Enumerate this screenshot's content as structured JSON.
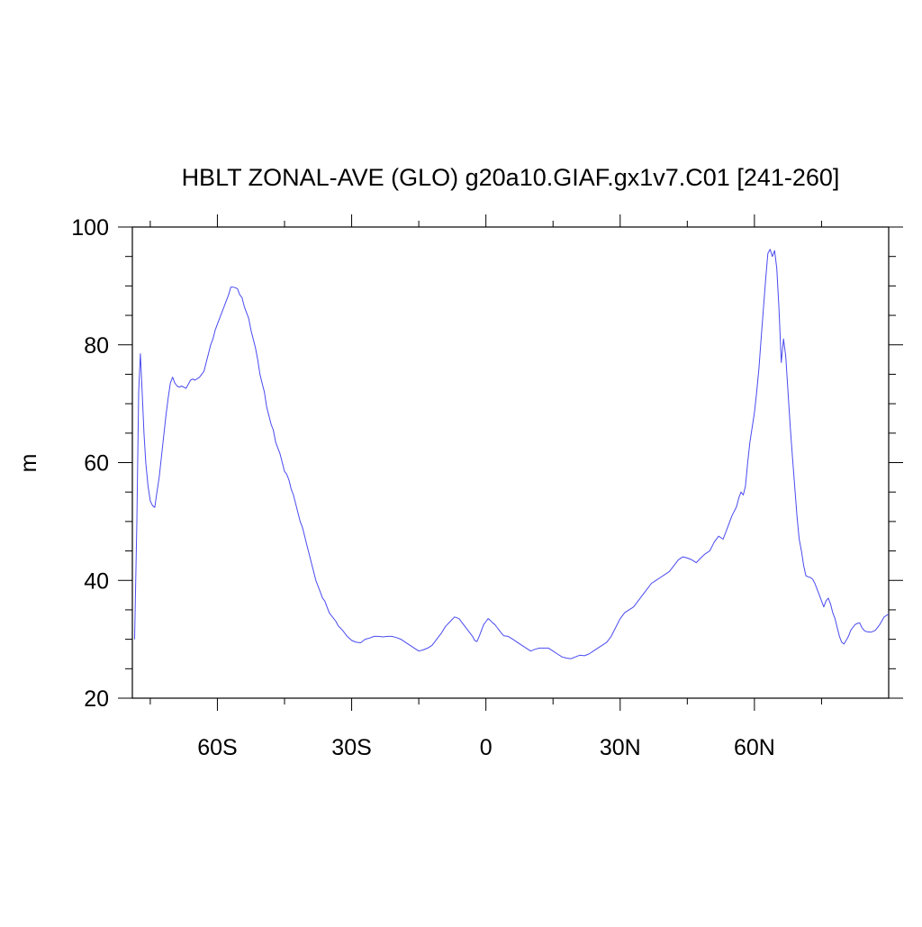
{
  "chart_data": {
    "type": "line",
    "title": "HBLT ZONAL-AVE (GLO) g20a10.GIAF.gx1v7.C01 [241-260]",
    "xlabel": "",
    "ylabel": "m",
    "xlim": [
      -79,
      90
    ],
    "ylim": [
      20,
      100
    ],
    "grid": false,
    "legend": "none",
    "x_ticks": [
      {
        "value": -60,
        "label": "60S"
      },
      {
        "value": -30,
        "label": "30S"
      },
      {
        "value": 0,
        "label": "0"
      },
      {
        "value": 30,
        "label": "30N"
      },
      {
        "value": 60,
        "label": "60N"
      }
    ],
    "y_ticks": [
      {
        "value": 20,
        "label": "20"
      },
      {
        "value": 40,
        "label": "40"
      },
      {
        "value": 60,
        "label": "60"
      },
      {
        "value": 80,
        "label": "80"
      },
      {
        "value": 100,
        "label": "100"
      }
    ],
    "line_color": "#4a4af0",
    "series": [
      {
        "x": [
          -78.5,
          -78.0,
          -77.6,
          -77.2,
          -76.8,
          -76.4,
          -76.0,
          -75.5,
          -75.0,
          -74.5,
          -74.0,
          -73.5,
          -73.0,
          -72.5,
          -72.0,
          -71.5,
          -71.0,
          -70.5,
          -70.0,
          -69.5,
          -69.0,
          -68.5,
          -68.0,
          -67.0,
          -66.0,
          -65.5,
          -65.0,
          -64.0,
          -63.5,
          -63.0,
          -62.5,
          -62.0,
          -61.5,
          -61.0,
          -60.5,
          -60.0,
          -59.5,
          -59.0,
          -58.5,
          -58.0,
          -57.5,
          -57.0,
          -56.5,
          -56.0,
          -55.5,
          -55.0,
          -54.5,
          -54.0,
          -53.5,
          -53.0,
          -52.5,
          -52.0,
          -51.5,
          -51.0,
          -50.5,
          -50.0,
          -49.5,
          -49.0,
          -48.5,
          -48.0,
          -47.5,
          -47.0,
          -46.5,
          -46.0,
          -45.5,
          -45.0,
          -44.5,
          -44.0,
          -43.5,
          -43.0,
          -42.5,
          -42.0,
          -41.5,
          -41.0,
          -40.5,
          -40.0,
          -39.5,
          -39.0,
          -38.5,
          -38.0,
          -37.5,
          -37.0,
          -36.5,
          -36.0,
          -35.5,
          -35.0,
          -34.5,
          -34.0,
          -33.5,
          -33.0,
          -32.0,
          -31.0,
          -30.0,
          -29.0,
          -28.0,
          -27.0,
          -26.0,
          -25.0,
          -24.0,
          -23.0,
          -22.0,
          -21.0,
          -20.0,
          -19.0,
          -18.0,
          -17.0,
          -16.0,
          -15.0,
          -14.0,
          -13.0,
          -12.0,
          -11.0,
          -10.0,
          -9.0,
          -8.0,
          -7.0,
          -6.0,
          -5.0,
          -4.0,
          -3.0,
          -2.5,
          -2.0,
          -1.5,
          -1.0,
          -0.5,
          0.0,
          0.5,
          1.0,
          1.5,
          2.0,
          2.5,
          3.0,
          3.5,
          4.0,
          5.0,
          6.0,
          7.0,
          8.0,
          9.0,
          10.0,
          11.0,
          12.0,
          13.0,
          14.0,
          15.0,
          16.0,
          17.0,
          18.0,
          19.0,
          20.0,
          21.0,
          22.0,
          23.0,
          24.0,
          25.0,
          26.0,
          27.0,
          28.0,
          29.0,
          30.0,
          31.0,
          32.0,
          33.0,
          34.0,
          35.0,
          36.0,
          37.0,
          38.0,
          39.0,
          40.0,
          41.0,
          42.0,
          43.0,
          44.0,
          45.0,
          46.0,
          47.0,
          48.0,
          49.0,
          50.0,
          51.0,
          52.0,
          53.0,
          54.0,
          55.0,
          56.0,
          56.5,
          57.0,
          57.5,
          58.0,
          58.5,
          59.0,
          59.5,
          60.0,
          60.5,
          61.0,
          61.5,
          62.0,
          62.5,
          63.0,
          63.5,
          64.0,
          64.5,
          65.0,
          65.5,
          66.0,
          66.5,
          67.0,
          67.5,
          68.0,
          68.5,
          69.0,
          69.5,
          70.0,
          70.5,
          71.0,
          71.5,
          72.0,
          72.5,
          73.0,
          73.5,
          74.0,
          74.5,
          75.0,
          75.5,
          76.0,
          76.5,
          77.0,
          77.5,
          78.0,
          78.5,
          79.0,
          79.5,
          80.0,
          80.5,
          81.0,
          81.5,
          82.0,
          82.5,
          83.0,
          83.5,
          84.0,
          84.5,
          85.0,
          86.0,
          87.0,
          88.0,
          89.0,
          90.0
        ],
        "values": [
          30.0,
          50.0,
          72.0,
          78.5,
          72.0,
          65.0,
          60.0,
          56.0,
          53.5,
          52.7,
          52.4,
          55.0,
          57.5,
          61.0,
          64.5,
          68.0,
          71.0,
          73.5,
          74.5,
          73.5,
          73.0,
          72.8,
          73.0,
          72.6,
          74.0,
          74.2,
          74.0,
          74.5,
          75.0,
          75.5,
          77.0,
          78.5,
          80.0,
          81.0,
          82.5,
          83.5,
          84.5,
          85.5,
          86.5,
          87.5,
          88.5,
          89.8,
          89.8,
          89.7,
          89.5,
          88.5,
          88.0,
          86.5,
          85.5,
          84.5,
          82.5,
          81.0,
          79.5,
          77.5,
          75.0,
          73.5,
          72.0,
          69.5,
          68.0,
          66.5,
          65.5,
          63.5,
          62.5,
          61.5,
          60.0,
          58.5,
          58.0,
          57.0,
          55.5,
          54.5,
          53.0,
          51.5,
          50.0,
          49.0,
          47.5,
          46.0,
          44.5,
          43.0,
          41.5,
          40.0,
          39.0,
          38.0,
          37.0,
          36.5,
          35.5,
          34.5,
          34.0,
          33.5,
          33.0,
          32.3,
          31.5,
          30.5,
          29.8,
          29.5,
          29.4,
          30.0,
          30.2,
          30.5,
          30.5,
          30.4,
          30.5,
          30.5,
          30.3,
          30.0,
          29.5,
          29.0,
          28.5,
          28.0,
          28.2,
          28.5,
          29.0,
          30.0,
          31.0,
          32.2,
          33.0,
          33.8,
          33.5,
          32.5,
          31.5,
          30.5,
          29.8,
          29.6,
          30.5,
          31.5,
          32.5,
          33.0,
          33.5,
          33.2,
          32.8,
          32.5,
          32.0,
          31.5,
          31.0,
          30.6,
          30.5,
          30.0,
          29.5,
          29.0,
          28.5,
          28.0,
          28.3,
          28.5,
          28.5,
          28.5,
          28.0,
          27.5,
          27.0,
          26.8,
          26.7,
          27.0,
          27.3,
          27.2,
          27.5,
          28.0,
          28.5,
          29.0,
          29.5,
          30.5,
          32.0,
          33.5,
          34.5,
          35.0,
          35.5,
          36.5,
          37.5,
          38.5,
          39.5,
          40.0,
          40.5,
          41.0,
          41.5,
          42.5,
          43.5,
          44.0,
          43.8,
          43.5,
          43.0,
          43.8,
          44.5,
          45.0,
          46.5,
          47.5,
          47.0,
          49.0,
          51.0,
          52.5,
          54.0,
          55.0,
          54.5,
          56.0,
          60.0,
          63.5,
          66.0,
          68.5,
          72.0,
          76.0,
          81.0,
          86.0,
          91.0,
          95.5,
          96.2,
          95.0,
          96.0,
          93.0,
          86.0,
          77.0,
          81.0,
          78.0,
          72.0,
          66.0,
          61.0,
          56.0,
          51.0,
          47.0,
          45.0,
          42.5,
          40.8,
          40.6,
          40.5,
          40.2,
          39.5,
          38.5,
          37.5,
          36.5,
          35.5,
          36.5,
          37.0,
          36.0,
          34.5,
          33.5,
          32.0,
          30.5,
          29.5,
          29.2,
          29.8,
          30.5,
          31.5,
          32.0,
          32.5,
          32.7,
          32.8,
          32.0,
          31.5,
          31.3,
          31.2,
          31.5,
          32.5,
          33.8,
          34.3
        ]
      }
    ]
  }
}
